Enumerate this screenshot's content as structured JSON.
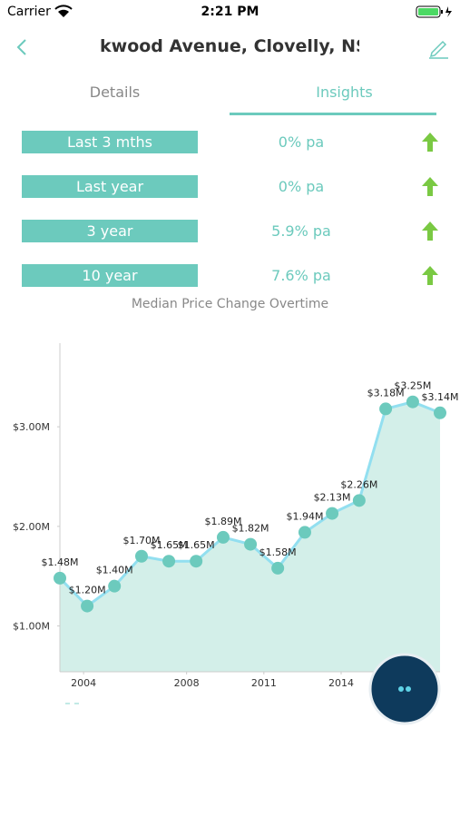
{
  "status_bar": {
    "carrier": "Carrier",
    "time": "2:21 PM"
  },
  "header": {
    "title": "kwood Avenue, Clovelly, NS"
  },
  "tabs": [
    "Details",
    "Insights"
  ],
  "active_tab": 1,
  "stats": [
    {
      "label": "Last 3 mths",
      "value": "0% pa"
    },
    {
      "label": "Last year",
      "value": "0% pa"
    },
    {
      "label": "3 year",
      "value": "5.9% pa"
    },
    {
      "label": "10 year",
      "value": "7.6% pa"
    }
  ],
  "chart_data": {
    "type": "area",
    "title": "Median Price Change Overtime",
    "x": [
      2003.08,
      2004.14,
      2005.2,
      2006.25,
      2007.31,
      2008.37,
      2009.42,
      2010.48,
      2011.54,
      2012.59,
      2013.65,
      2014.7,
      2015.73,
      2016.78,
      2017.84
    ],
    "values": [
      1.48,
      1.2,
      1.4,
      1.7,
      1.65,
      1.65,
      1.89,
      1.82,
      1.58,
      1.94,
      2.13,
      2.26,
      3.18,
      3.25,
      3.14
    ],
    "value_labels": [
      "$1.48M",
      "$1.20M",
      "$1.40M",
      "$1.70M",
      "$1.65M",
      "$1.65M",
      "$1.89M",
      "$1.82M",
      "$1.58M",
      "$1.94M",
      "$2.13M",
      "$2.26M",
      "$3.18M",
      "$3.25M",
      "$3.14M"
    ],
    "xlim": [
      2003.08,
      2017.84
    ],
    "xticks": [
      2004,
      2008,
      2011,
      2014
    ],
    "ylim": [
      0.54,
      3.84
    ],
    "yticks": [
      {
        "value": 1,
        "label": "$1.00M"
      },
      {
        "value": 2,
        "label": "$2.00M"
      },
      {
        "value": 3,
        "label": "$3.00M"
      }
    ],
    "color": "#92dff0",
    "fill_color": "#d3efe9",
    "marker_color": "#6ccabd"
  }
}
